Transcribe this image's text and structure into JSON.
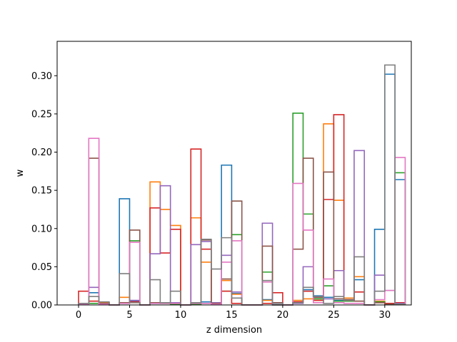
{
  "chart_data": {
    "type": "step-histogram",
    "title": "",
    "xlabel": "z dimension",
    "ylabel": "w",
    "xlim": [
      -2.1,
      32.6
    ],
    "ylim": [
      0,
      0.345
    ],
    "xticks": [
      0,
      5,
      10,
      15,
      20,
      25,
      30
    ],
    "yticks": [
      0.0,
      0.05,
      0.1,
      0.15,
      0.2,
      0.25,
      0.3
    ],
    "ytick_labels": [
      "0.00",
      "0.05",
      "0.10",
      "0.15",
      "0.20",
      "0.25",
      "0.30"
    ],
    "bins": [
      0,
      1,
      2,
      3,
      4,
      5,
      6,
      7,
      8,
      9,
      10,
      11,
      12,
      13,
      14,
      15,
      16,
      17,
      18,
      19,
      20,
      21,
      22,
      23,
      24,
      25,
      26,
      27,
      28,
      29,
      30,
      31
    ],
    "grid": false,
    "series": [
      {
        "color": "#1f77b4",
        "values": [
          0.002,
          0.016,
          0.003,
          0,
          0.139,
          0.005,
          0,
          0.002,
          0.003,
          0.002,
          0,
          0.002,
          0.004,
          0.002,
          0.183,
          0.015,
          0,
          0,
          0.007,
          0,
          0,
          0.004,
          0.02,
          0.012,
          0.01,
          0.006,
          0.005,
          0.033,
          0,
          0.099,
          0.302,
          0.164
        ]
      },
      {
        "color": "#ff7f0e",
        "values": [
          0.002,
          0.005,
          0.003,
          0,
          0.01,
          0.003,
          0,
          0.161,
          0.125,
          0.104,
          0,
          0.114,
          0.056,
          0.002,
          0.032,
          0.014,
          0,
          0,
          0.006,
          0,
          0,
          0.006,
          0.008,
          0.006,
          0.237,
          0.137,
          0.009,
          0.037,
          0,
          0.005,
          0.002,
          0.002
        ]
      },
      {
        "color": "#2ca02c",
        "values": [
          0.001,
          0.002,
          0.002,
          0,
          0.002,
          0.084,
          0,
          0.002,
          0.002,
          0.001,
          0,
          0.001,
          0.002,
          0.001,
          0.018,
          0.092,
          0,
          0,
          0.043,
          0,
          0,
          0.251,
          0.119,
          0.008,
          0.025,
          0.005,
          0.005,
          0.005,
          0,
          0.004,
          0.001,
          0.173
        ]
      },
      {
        "color": "#d62728",
        "values": [
          0.018,
          0.005,
          0.002,
          0,
          0.003,
          0.004,
          0,
          0.127,
          0.068,
          0.099,
          0,
          0.204,
          0.073,
          0.003,
          0.018,
          0.002,
          0,
          0,
          0.002,
          0.016,
          0,
          0.004,
          0.018,
          0.006,
          0.138,
          0.249,
          0.006,
          0.017,
          0,
          0.003,
          0.002,
          0.003
        ]
      },
      {
        "color": "#9467bd",
        "values": [
          0.001,
          0.023,
          0.002,
          0,
          0.003,
          0.006,
          0,
          0.067,
          0.156,
          0.003,
          0,
          0.079,
          0.083,
          0.003,
          0.065,
          0.017,
          0,
          0,
          0.107,
          0,
          0,
          0.002,
          0.05,
          0.01,
          0.008,
          0.045,
          0.007,
          0.202,
          0,
          0.039,
          0.019,
          0.002
        ]
      },
      {
        "color": "#8c564b",
        "values": [
          0.002,
          0.192,
          0.002,
          0,
          0.003,
          0.098,
          0,
          0.003,
          0.002,
          0.002,
          0,
          0.002,
          0.085,
          0.002,
          0.034,
          0.136,
          0,
          0,
          0.077,
          0.003,
          0,
          0.073,
          0.192,
          0.01,
          0.174,
          0.008,
          0.007,
          0.005,
          0,
          0.003,
          0.001,
          0.001
        ]
      },
      {
        "color": "#e377c2",
        "values": [
          0.001,
          0.218,
          0.001,
          0,
          0.002,
          0.082,
          0,
          0.002,
          0.002,
          0.002,
          0,
          0.002,
          0.002,
          0.001,
          0.056,
          0.084,
          0,
          0,
          0.03,
          0.002,
          0,
          0.159,
          0.098,
          0.003,
          0.034,
          0.003,
          0.002,
          0.002,
          0,
          0.007,
          0.019,
          0.193
        ]
      },
      {
        "color": "#7f7f7f",
        "values": [
          0.002,
          0.011,
          0.004,
          0,
          0.041,
          0.003,
          0,
          0.033,
          0.003,
          0.018,
          0,
          0.003,
          0.086,
          0.047,
          0.088,
          0.009,
          0,
          0,
          0.032,
          0.002,
          0,
          0.003,
          0.023,
          0.011,
          0.002,
          0.011,
          0.006,
          0.063,
          0,
          0.018,
          0.314,
          0.001
        ]
      }
    ]
  }
}
